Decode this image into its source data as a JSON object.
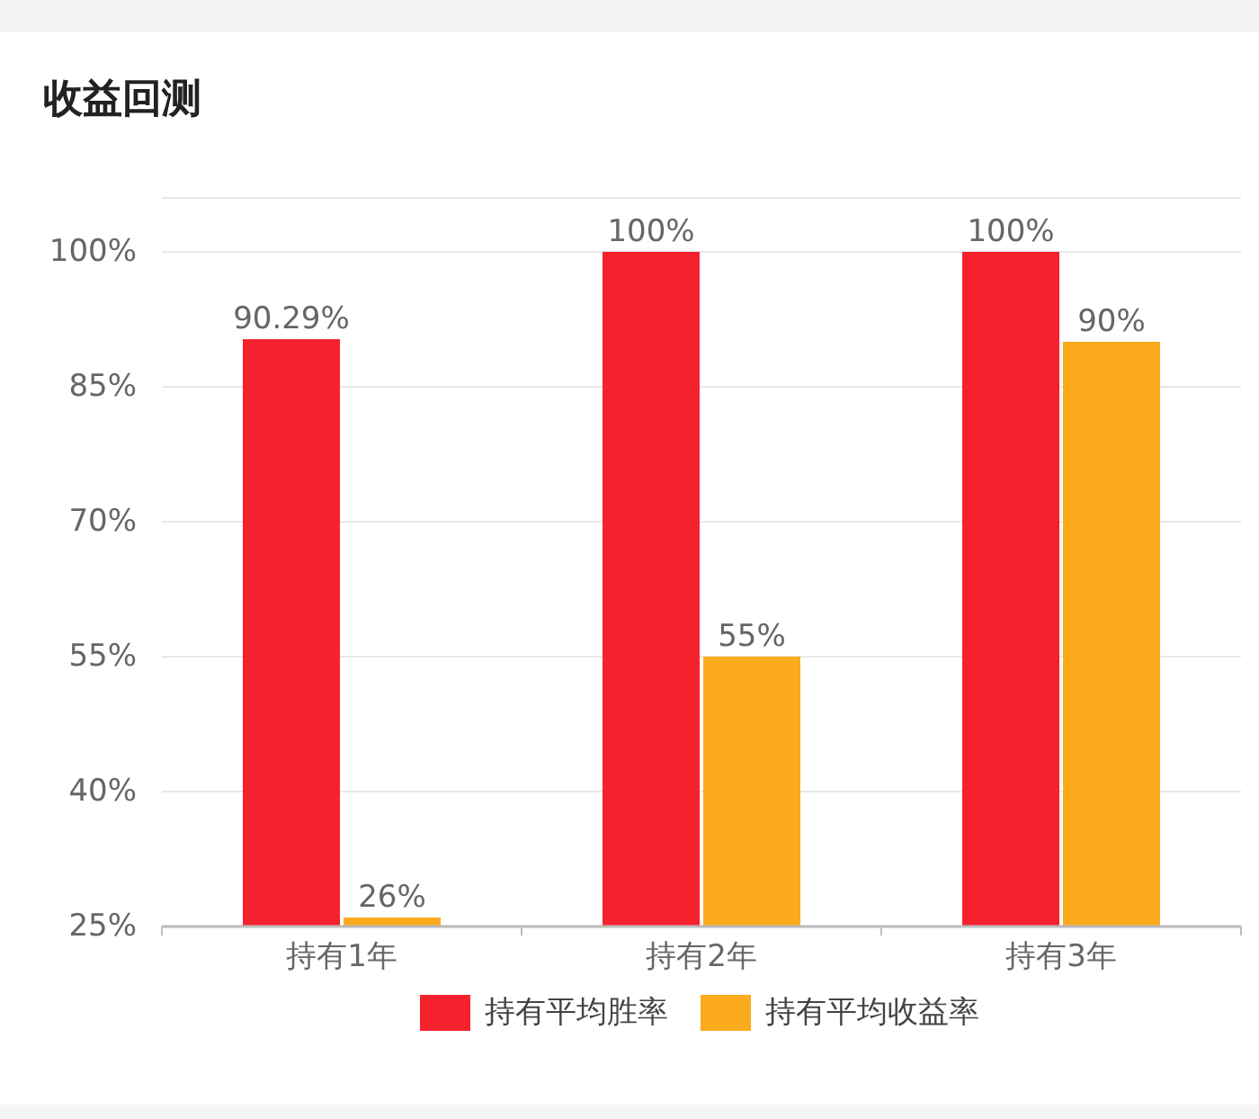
{
  "chart_data": {
    "type": "bar",
    "title": "收益回测",
    "categories": [
      "持有1年",
      "持有2年",
      "持有3年"
    ],
    "series": [
      {
        "name": "持有平均胜率",
        "color": "#f5212d",
        "values": [
          90.29,
          100,
          100
        ],
        "value_labels": [
          "90.29%",
          "100%",
          "100%"
        ]
      },
      {
        "name": "持有平均收益率",
        "color": "#fcaa1e",
        "values": [
          26,
          55,
          90
        ],
        "value_labels": [
          "26%",
          "55%",
          "90%"
        ]
      }
    ],
    "ylim": [
      25,
      106
    ],
    "yticks": [
      {
        "value": 25,
        "label": "25%"
      },
      {
        "value": 40,
        "label": "40%"
      },
      {
        "value": 55,
        "label": "55%"
      },
      {
        "value": 70,
        "label": "70%"
      },
      {
        "value": 85,
        "label": "85%"
      },
      {
        "value": 100,
        "label": "100%"
      }
    ],
    "grid": "y",
    "legend": "bottom"
  }
}
